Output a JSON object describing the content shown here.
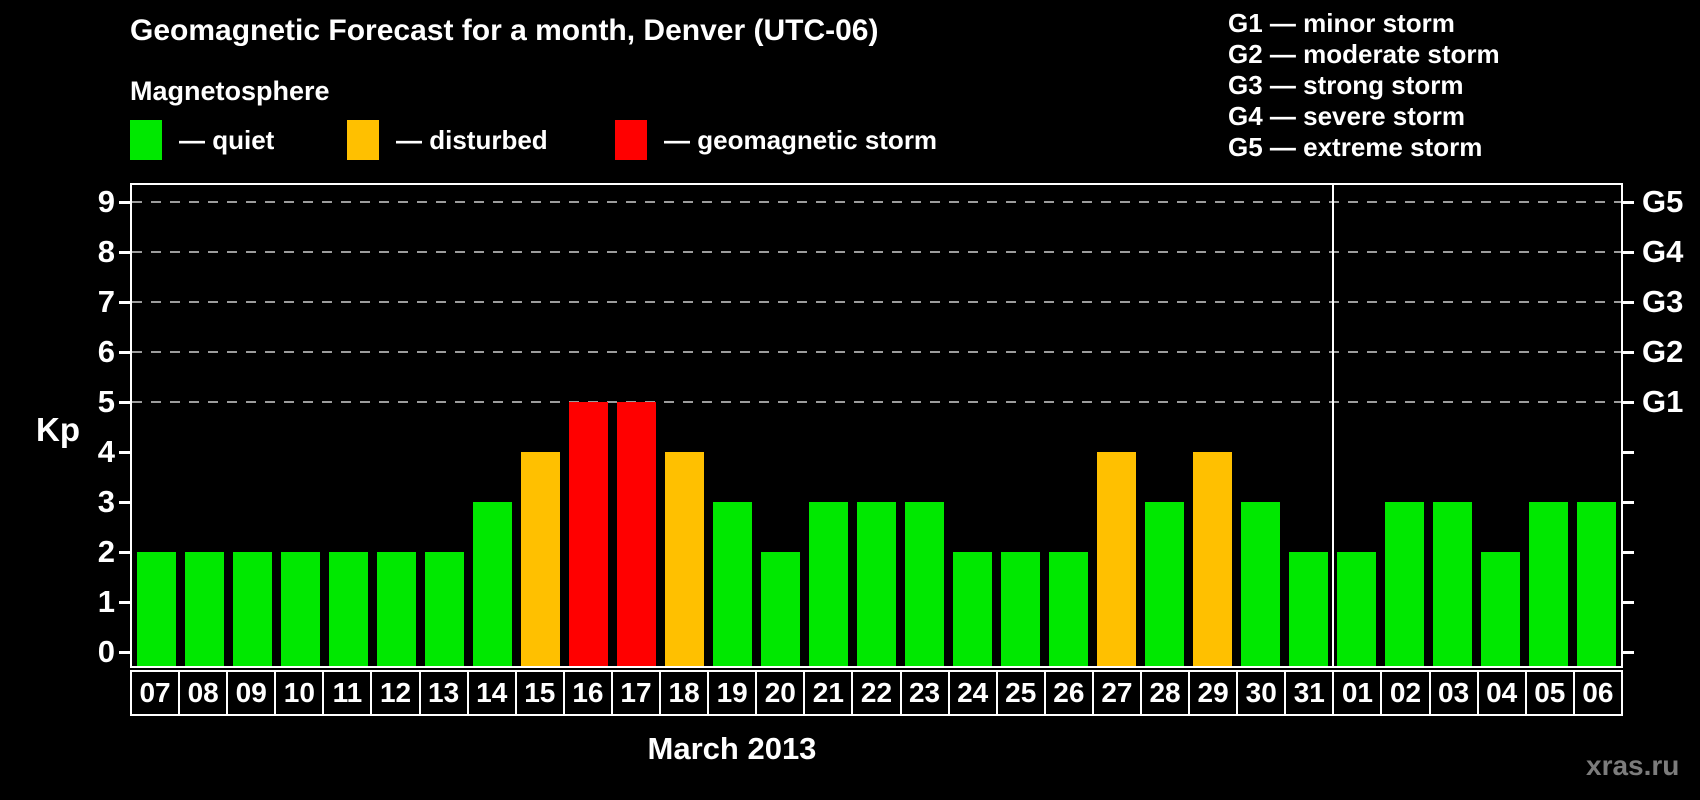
{
  "title": "Geomagnetic Forecast for a month, Denver (UTC-06)",
  "subtitle": "Magnetosphere",
  "y_axis_label": "Kp",
  "month_label": "March 2013",
  "watermark": "xras.ru",
  "colors": {
    "background": "#000000",
    "text": "#ffffff",
    "gridline": "#9c9c9c",
    "watermark": "#7c7c7c",
    "quiet": "#00e800",
    "disturbed": "#ffc000",
    "storm": "#ff0000"
  },
  "legend": {
    "items": [
      {
        "key": "quiet",
        "label": "— quiet",
        "color": "#00e800"
      },
      {
        "key": "disturbed",
        "label": "— disturbed",
        "color": "#ffc000"
      },
      {
        "key": "storm",
        "label": "— geomagnetic storm",
        "color": "#ff0000"
      }
    ]
  },
  "storm_scale": {
    "items": [
      {
        "label": "G1 — minor storm"
      },
      {
        "label": "G2 — moderate storm"
      },
      {
        "label": "G3 — strong storm"
      },
      {
        "label": "G4 — severe storm"
      },
      {
        "label": "G5 — extreme storm"
      }
    ]
  },
  "chart_data": {
    "type": "bar",
    "title": "Geomagnetic Forecast for a month, Denver (UTC-06)",
    "xlabel": "March 2013",
    "ylabel": "Kp",
    "ylim": [
      0,
      9.4
    ],
    "yticks": [
      0,
      1,
      2,
      3,
      4,
      5,
      6,
      7,
      8,
      9
    ],
    "gridlines": [
      5,
      6,
      7,
      8,
      9
    ],
    "grid_style": "dashed",
    "legend_position": "top",
    "right_axis": [
      {
        "label": "G1",
        "kp": 5
      },
      {
        "label": "G2",
        "kp": 6
      },
      {
        "label": "G3",
        "kp": 7
      },
      {
        "label": "G4",
        "kp": 8
      },
      {
        "label": "G5",
        "kp": 9
      }
    ],
    "categories": [
      "07",
      "08",
      "09",
      "10",
      "11",
      "12",
      "13",
      "14",
      "15",
      "16",
      "17",
      "18",
      "19",
      "20",
      "21",
      "22",
      "23",
      "24",
      "25",
      "26",
      "27",
      "28",
      "29",
      "30",
      "31",
      "01",
      "02",
      "03",
      "04",
      "05",
      "06"
    ],
    "values": [
      2,
      2,
      2,
      2,
      2,
      2,
      2,
      3,
      4,
      5,
      5,
      4,
      3,
      2,
      3,
      3,
      3,
      2,
      2,
      2,
      4,
      3,
      4,
      3,
      2,
      2,
      3,
      3,
      2,
      3,
      3
    ],
    "statuses": [
      "quiet",
      "quiet",
      "quiet",
      "quiet",
      "quiet",
      "quiet",
      "quiet",
      "quiet",
      "disturbed",
      "storm",
      "storm",
      "disturbed",
      "quiet",
      "quiet",
      "quiet",
      "quiet",
      "quiet",
      "quiet",
      "quiet",
      "quiet",
      "disturbed",
      "quiet",
      "disturbed",
      "quiet",
      "quiet",
      "quiet",
      "quiet",
      "quiet",
      "quiet",
      "quiet",
      "quiet"
    ],
    "status_colors": {
      "quiet": "#00e800",
      "disturbed": "#ffc000",
      "storm": "#ff0000"
    },
    "month_boundary_index": 25
  }
}
